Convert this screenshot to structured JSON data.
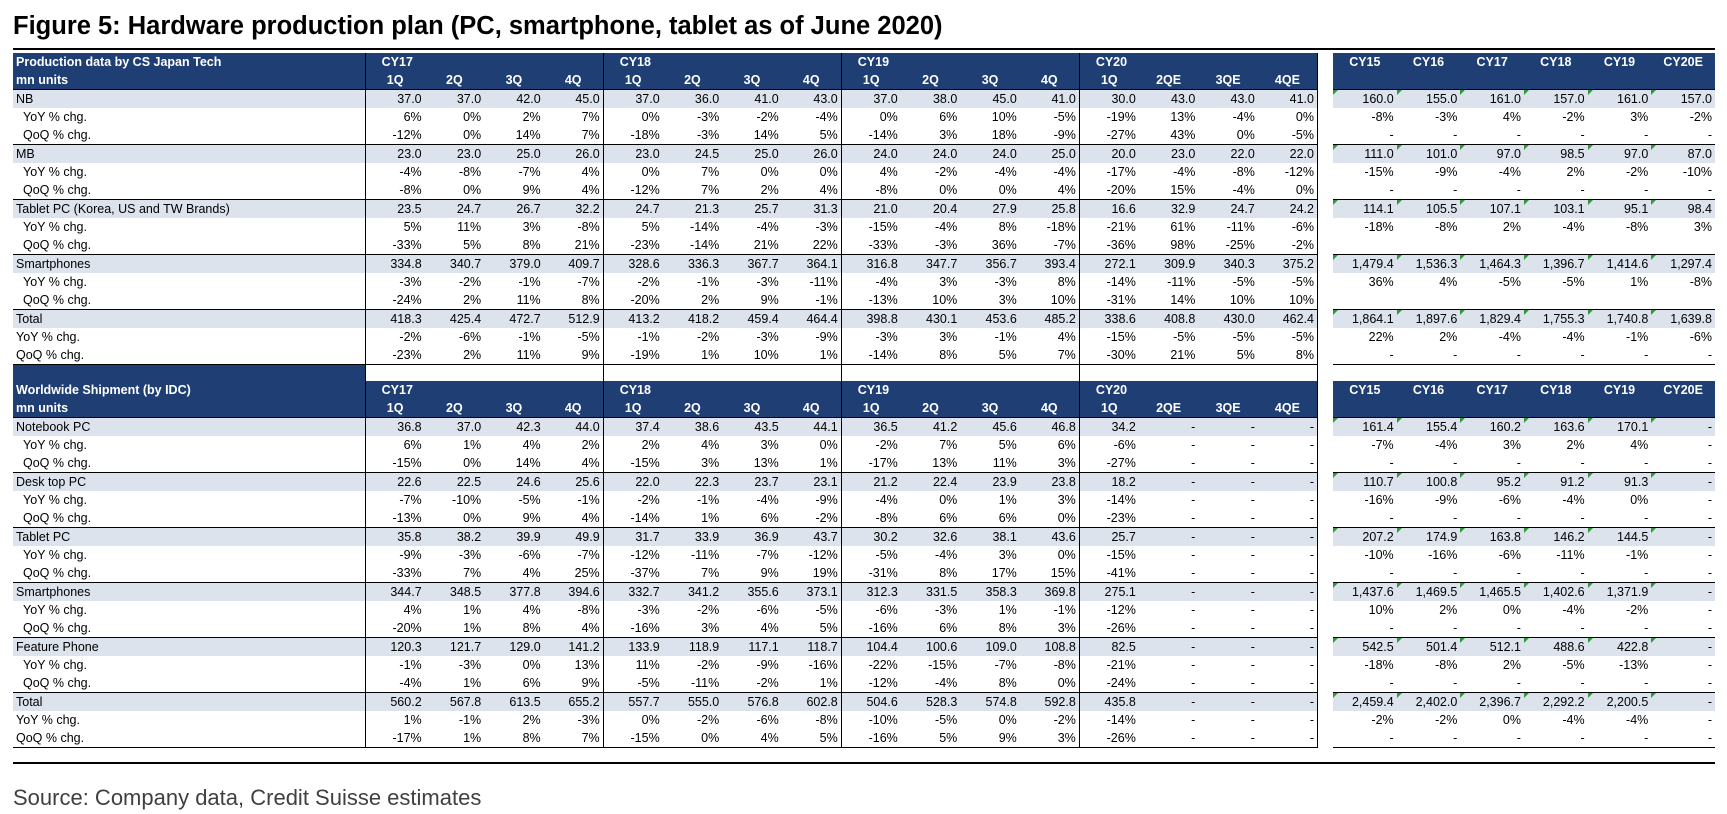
{
  "title": "Figure 5: Hardware production plan (PC, smartphone, tablet as of June 2020)",
  "source": "Source: Company data, Credit Suisse estimates",
  "accent_color": "#1f3f74",
  "highlight_color": "#dde3ec",
  "production": {
    "header_label": "Production data  by CS Japan Tech",
    "units": "mn units",
    "years": [
      "CY17",
      "CY18",
      "CY19",
      "CY20"
    ],
    "quarters": [
      "1Q",
      "2Q",
      "3Q",
      "4Q",
      "1Q",
      "2Q",
      "3Q",
      "4Q",
      "1Q",
      "2Q",
      "3Q",
      "4Q",
      "1Q",
      "2QE",
      "3QE",
      "4QE"
    ],
    "annual_years": [
      "CY15",
      "CY16",
      "CY17",
      "CY18",
      "CY19",
      "CY20E"
    ],
    "rows": [
      {
        "label": "NB",
        "type": "main",
        "q": [
          "37.0",
          "37.0",
          "42.0",
          "45.0",
          "37.0",
          "36.0",
          "41.0",
          "43.0",
          "37.0",
          "38.0",
          "45.0",
          "41.0",
          "30.0",
          "43.0",
          "43.0",
          "41.0"
        ],
        "a": [
          "160.0",
          "155.0",
          "161.0",
          "157.0",
          "161.0",
          "157.0"
        ]
      },
      {
        "label": "YoY % chg.",
        "type": "sub",
        "q": [
          "6%",
          "0%",
          "2%",
          "7%",
          "0%",
          "-3%",
          "-2%",
          "-4%",
          "0%",
          "6%",
          "10%",
          "-5%",
          "-19%",
          "13%",
          "-4%",
          "0%"
        ],
        "a": [
          "-8%",
          "-3%",
          "4%",
          "-2%",
          "3%",
          "-2%"
        ]
      },
      {
        "label": "QoQ % chg.",
        "type": "sub",
        "q": [
          "-12%",
          "0%",
          "14%",
          "7%",
          "-18%",
          "-3%",
          "14%",
          "5%",
          "-14%",
          "3%",
          "18%",
          "-9%",
          "-27%",
          "43%",
          "0%",
          "-5%"
        ],
        "a": [
          "-",
          "-",
          "-",
          "-",
          "-",
          "-"
        ]
      },
      {
        "label": "MB",
        "type": "main",
        "q": [
          "23.0",
          "23.0",
          "25.0",
          "26.0",
          "23.0",
          "24.5",
          "25.0",
          "26.0",
          "24.0",
          "24.0",
          "24.0",
          "25.0",
          "20.0",
          "23.0",
          "22.0",
          "22.0"
        ],
        "a": [
          "111.0",
          "101.0",
          "97.0",
          "98.5",
          "97.0",
          "87.0"
        ]
      },
      {
        "label": "YoY % chg.",
        "type": "sub",
        "q": [
          "-4%",
          "-8%",
          "-7%",
          "4%",
          "0%",
          "7%",
          "0%",
          "0%",
          "4%",
          "-2%",
          "-4%",
          "-4%",
          "-17%",
          "-4%",
          "-8%",
          "-12%"
        ],
        "a": [
          "-15%",
          "-9%",
          "-4%",
          "2%",
          "-2%",
          "-10%"
        ]
      },
      {
        "label": "QoQ % chg.",
        "type": "sub",
        "q": [
          "-8%",
          "0%",
          "9%",
          "4%",
          "-12%",
          "7%",
          "2%",
          "4%",
          "-8%",
          "0%",
          "0%",
          "4%",
          "-20%",
          "15%",
          "-4%",
          "0%"
        ],
        "a": [
          "-",
          "-",
          "-",
          "-",
          "-",
          "-"
        ]
      },
      {
        "label": "Tablet PC (Korea, US and TW Brands)",
        "type": "main",
        "q": [
          "23.5",
          "24.7",
          "26.7",
          "32.2",
          "24.7",
          "21.3",
          "25.7",
          "31.3",
          "21.0",
          "20.4",
          "27.9",
          "25.8",
          "16.6",
          "32.9",
          "24.7",
          "24.2"
        ],
        "a": [
          "114.1",
          "105.5",
          "107.1",
          "103.1",
          "95.1",
          "98.4"
        ]
      },
      {
        "label": "YoY % chg.",
        "type": "sub",
        "q": [
          "5%",
          "11%",
          "3%",
          "-8%",
          "5%",
          "-14%",
          "-4%",
          "-3%",
          "-15%",
          "-4%",
          "8%",
          "-18%",
          "-21%",
          "61%",
          "-11%",
          "-6%"
        ],
        "a": [
          "-18%",
          "-8%",
          "2%",
          "-4%",
          "-8%",
          "3%"
        ]
      },
      {
        "label": "QoQ % chg.",
        "type": "sub",
        "q": [
          "-33%",
          "5%",
          "8%",
          "21%",
          "-23%",
          "-14%",
          "21%",
          "22%",
          "-33%",
          "-3%",
          "36%",
          "-7%",
          "-36%",
          "98%",
          "-25%",
          "-2%"
        ],
        "a": [
          "",
          "",
          "",
          "",
          "",
          ""
        ]
      },
      {
        "label": "Smartphones",
        "type": "main",
        "q": [
          "334.8",
          "340.7",
          "379.0",
          "409.7",
          "328.6",
          "336.3",
          "367.7",
          "364.1",
          "316.8",
          "347.7",
          "356.7",
          "393.4",
          "272.1",
          "309.9",
          "340.3",
          "375.2"
        ],
        "a": [
          "1,479.4",
          "1,536.3",
          "1,464.3",
          "1,396.7",
          "1,414.6",
          "1,297.4"
        ]
      },
      {
        "label": "YoY % chg.",
        "type": "sub",
        "q": [
          "-3%",
          "-2%",
          "-1%",
          "-7%",
          "-2%",
          "-1%",
          "-3%",
          "-11%",
          "-4%",
          "3%",
          "-3%",
          "8%",
          "-14%",
          "-11%",
          "-5%",
          "-5%"
        ],
        "a": [
          "36%",
          "4%",
          "-5%",
          "-5%",
          "1%",
          "-8%"
        ]
      },
      {
        "label": "QoQ % chg.",
        "type": "sub",
        "q": [
          "-24%",
          "2%",
          "11%",
          "8%",
          "-20%",
          "2%",
          "9%",
          "-1%",
          "-13%",
          "10%",
          "3%",
          "10%",
          "-31%",
          "14%",
          "10%",
          "10%"
        ],
        "a": [
          "",
          "",
          "",
          "",
          "",
          ""
        ]
      },
      {
        "label": "Total",
        "type": "main",
        "q": [
          "418.3",
          "425.4",
          "472.7",
          "512.9",
          "413.2",
          "418.2",
          "459.4",
          "464.4",
          "398.8",
          "430.1",
          "453.6",
          "485.2",
          "338.6",
          "408.8",
          "430.0",
          "462.4"
        ],
        "a": [
          "1,864.1",
          "1,897.6",
          "1,829.4",
          "1,755.3",
          "1,740.8",
          "1,639.8"
        ]
      },
      {
        "label": "YoY % chg.",
        "type": "sub flat",
        "q": [
          "-2%",
          "-6%",
          "-1%",
          "-5%",
          "-1%",
          "-2%",
          "-3%",
          "-9%",
          "-3%",
          "3%",
          "-1%",
          "4%",
          "-15%",
          "-5%",
          "-5%",
          "-5%"
        ],
        "a": [
          "22%",
          "2%",
          "-4%",
          "-4%",
          "-1%",
          "-6%"
        ]
      },
      {
        "label": "QoQ % chg.",
        "type": "sub flat",
        "q": [
          "-23%",
          "2%",
          "11%",
          "9%",
          "-19%",
          "1%",
          "10%",
          "1%",
          "-14%",
          "8%",
          "5%",
          "7%",
          "-30%",
          "21%",
          "5%",
          "8%"
        ],
        "a": [
          "-",
          "-",
          "-",
          "-",
          "-",
          "-"
        ]
      }
    ]
  },
  "shipment": {
    "header_label": "Worldwide Shipment (by IDC)",
    "units": "mn units",
    "years": [
      "CY17",
      "CY18",
      "CY19",
      "CY20"
    ],
    "quarters": [
      "1Q",
      "2Q",
      "3Q",
      "4Q",
      "1Q",
      "2Q",
      "3Q",
      "4Q",
      "1Q",
      "2Q",
      "3Q",
      "4Q",
      "1Q",
      "2QE",
      "3QE",
      "4QE"
    ],
    "annual_years": [
      "CY15",
      "CY16",
      "CY17",
      "CY18",
      "CY19",
      "CY20E"
    ],
    "rows": [
      {
        "label": "Notebook PC",
        "type": "main",
        "q": [
          "36.8",
          "37.0",
          "42.3",
          "44.0",
          "37.4",
          "38.6",
          "43.5",
          "44.1",
          "36.5",
          "41.2",
          "45.6",
          "46.8",
          "34.2",
          "-",
          "-",
          "-"
        ],
        "a": [
          "161.4",
          "155.4",
          "160.2",
          "163.6",
          "170.1",
          "-"
        ]
      },
      {
        "label": "YoY % chg.",
        "type": "sub",
        "q": [
          "6%",
          "1%",
          "4%",
          "2%",
          "2%",
          "4%",
          "3%",
          "0%",
          "-2%",
          "7%",
          "5%",
          "6%",
          "-6%",
          "-",
          "-",
          "-"
        ],
        "a": [
          "-7%",
          "-4%",
          "3%",
          "2%",
          "4%",
          "-"
        ]
      },
      {
        "label": "QoQ % chg.",
        "type": "sub",
        "q": [
          "-15%",
          "0%",
          "14%",
          "4%",
          "-15%",
          "3%",
          "13%",
          "1%",
          "-17%",
          "13%",
          "11%",
          "3%",
          "-27%",
          "-",
          "-",
          "-"
        ],
        "a": [
          "-",
          "-",
          "-",
          "-",
          "-",
          "-"
        ]
      },
      {
        "label": "Desk top PC",
        "type": "main",
        "q": [
          "22.6",
          "22.5",
          "24.6",
          "25.6",
          "22.0",
          "22.3",
          "23.7",
          "23.1",
          "21.2",
          "22.4",
          "23.9",
          "23.8",
          "18.2",
          "-",
          "-",
          "-"
        ],
        "a": [
          "110.7",
          "100.8",
          "95.2",
          "91.2",
          "91.3",
          "-"
        ]
      },
      {
        "label": "YoY % chg.",
        "type": "sub",
        "q": [
          "-7%",
          "-10%",
          "-5%",
          "-1%",
          "-2%",
          "-1%",
          "-4%",
          "-9%",
          "-4%",
          "0%",
          "1%",
          "3%",
          "-14%",
          "-",
          "-",
          "-"
        ],
        "a": [
          "-16%",
          "-9%",
          "-6%",
          "-4%",
          "0%",
          "-"
        ]
      },
      {
        "label": "QoQ % chg.",
        "type": "sub",
        "q": [
          "-13%",
          "0%",
          "9%",
          "4%",
          "-14%",
          "1%",
          "6%",
          "-2%",
          "-8%",
          "6%",
          "6%",
          "0%",
          "-23%",
          "-",
          "-",
          "-"
        ],
        "a": [
          "-",
          "-",
          "-",
          "-",
          "-",
          "-"
        ]
      },
      {
        "label": "Tablet PC",
        "type": "main",
        "q": [
          "35.8",
          "38.2",
          "39.9",
          "49.9",
          "31.7",
          "33.9",
          "36.9",
          "43.7",
          "30.2",
          "32.6",
          "38.1",
          "43.6",
          "25.7",
          "-",
          "-",
          "-"
        ],
        "a": [
          "207.2",
          "174.9",
          "163.8",
          "146.2",
          "144.5",
          "-"
        ]
      },
      {
        "label": "YoY % chg.",
        "type": "sub",
        "q": [
          "-9%",
          "-3%",
          "-6%",
          "-7%",
          "-12%",
          "-11%",
          "-7%",
          "-12%",
          "-5%",
          "-4%",
          "3%",
          "0%",
          "-15%",
          "-",
          "-",
          "-"
        ],
        "a": [
          "-10%",
          "-16%",
          "-6%",
          "-11%",
          "-1%",
          "-"
        ]
      },
      {
        "label": "QoQ % chg.",
        "type": "sub",
        "q": [
          "-33%",
          "7%",
          "4%",
          "25%",
          "-37%",
          "7%",
          "9%",
          "19%",
          "-31%",
          "8%",
          "17%",
          "15%",
          "-41%",
          "-",
          "-",
          "-"
        ],
        "a": [
          "-",
          "-",
          "-",
          "-",
          "-",
          "-"
        ]
      },
      {
        "label": "Smartphones",
        "type": "main",
        "q": [
          "344.7",
          "348.5",
          "377.8",
          "394.6",
          "332.7",
          "341.2",
          "355.6",
          "373.1",
          "312.3",
          "331.5",
          "358.3",
          "369.8",
          "275.1",
          "-",
          "-",
          "-"
        ],
        "a": [
          "1,437.6",
          "1,469.5",
          "1,465.5",
          "1,402.6",
          "1,371.9",
          "-"
        ]
      },
      {
        "label": "YoY % chg.",
        "type": "sub",
        "q": [
          "4%",
          "1%",
          "4%",
          "-8%",
          "-3%",
          "-2%",
          "-6%",
          "-5%",
          "-6%",
          "-3%",
          "1%",
          "-1%",
          "-12%",
          "-",
          "-",
          "-"
        ],
        "a": [
          "10%",
          "2%",
          "0%",
          "-4%",
          "-2%",
          "-"
        ]
      },
      {
        "label": "QoQ % chg.",
        "type": "sub",
        "q": [
          "-20%",
          "1%",
          "8%",
          "4%",
          "-16%",
          "3%",
          "4%",
          "5%",
          "-16%",
          "6%",
          "8%",
          "3%",
          "-26%",
          "-",
          "-",
          "-"
        ],
        "a": [
          "-",
          "-",
          "-",
          "-",
          "-",
          "-"
        ]
      },
      {
        "label": "Feature Phone",
        "type": "main",
        "q": [
          "120.3",
          "121.7",
          "129.0",
          "141.2",
          "133.9",
          "118.9",
          "117.1",
          "118.7",
          "104.4",
          "100.6",
          "109.0",
          "108.8",
          "82.5",
          "-",
          "-",
          "-"
        ],
        "a": [
          "542.5",
          "501.4",
          "512.1",
          "488.6",
          "422.8",
          "-"
        ]
      },
      {
        "label": "YoY % chg.",
        "type": "sub",
        "q": [
          "-1%",
          "-3%",
          "0%",
          "13%",
          "11%",
          "-2%",
          "-9%",
          "-16%",
          "-22%",
          "-15%",
          "-7%",
          "-8%",
          "-21%",
          "-",
          "-",
          "-"
        ],
        "a": [
          "-18%",
          "-8%",
          "2%",
          "-5%",
          "-13%",
          "-"
        ]
      },
      {
        "label": "QoQ % chg.",
        "type": "sub",
        "q": [
          "-4%",
          "1%",
          "6%",
          "9%",
          "-5%",
          "-11%",
          "-2%",
          "1%",
          "-12%",
          "-4%",
          "8%",
          "0%",
          "-24%",
          "-",
          "-",
          "-"
        ],
        "a": [
          "-",
          "-",
          "-",
          "-",
          "-",
          "-"
        ]
      },
      {
        "label": "Total",
        "type": "main",
        "q": [
          "560.2",
          "567.8",
          "613.5",
          "655.2",
          "557.7",
          "555.0",
          "576.8",
          "602.8",
          "504.6",
          "528.3",
          "574.8",
          "592.8",
          "435.8",
          "-",
          "-",
          "-"
        ],
        "a": [
          "2,459.4",
          "2,402.0",
          "2,396.7",
          "2,292.2",
          "2,200.5",
          "-"
        ]
      },
      {
        "label": "YoY % chg.",
        "type": "sub flat",
        "q": [
          "1%",
          "-1%",
          "2%",
          "-3%",
          "0%",
          "-2%",
          "-6%",
          "-8%",
          "-10%",
          "-5%",
          "0%",
          "-2%",
          "-14%",
          "-",
          "-",
          "-"
        ],
        "a": [
          "-2%",
          "-2%",
          "0%",
          "-4%",
          "-4%",
          "-"
        ]
      },
      {
        "label": "QoQ % chg.",
        "type": "sub flat",
        "q": [
          "-17%",
          "1%",
          "8%",
          "7%",
          "-15%",
          "0%",
          "4%",
          "5%",
          "-16%",
          "5%",
          "9%",
          "3%",
          "-26%",
          "-",
          "-",
          "-"
        ],
        "a": [
          "-",
          "-",
          "-",
          "-",
          "-",
          "-"
        ]
      }
    ]
  }
}
